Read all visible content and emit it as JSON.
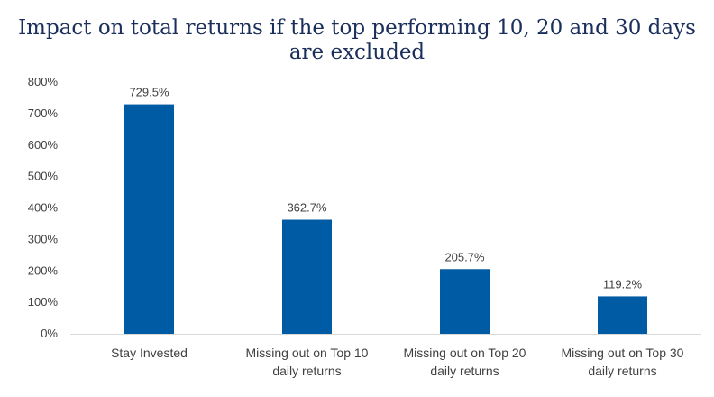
{
  "chart_data": {
    "type": "bar",
    "title_lines": [
      "Impact on total returns if the top performing  10, 20 and 30 days",
      "are excluded"
    ],
    "categories": [
      [
        "Stay Invested"
      ],
      [
        "Missing out on Top 10",
        "daily returns"
      ],
      [
        "Missing out on Top 20",
        "daily returns"
      ],
      [
        "Missing out on Top 30",
        "daily returns"
      ]
    ],
    "values": [
      729.5,
      362.7,
      205.7,
      119.2
    ],
    "data_labels": [
      "729.5%",
      "362.7%",
      "205.7%",
      "119.2%"
    ],
    "xlabel": "",
    "ylabel": "",
    "ylim": [
      0,
      800
    ],
    "yticks": [
      0,
      100,
      200,
      300,
      400,
      500,
      600,
      700,
      800
    ],
    "ytick_labels": [
      "0%",
      "100%",
      "200%",
      "300%",
      "400%",
      "500%",
      "600%",
      "700%",
      "800%"
    ],
    "grid": false,
    "bar_color": "#005ba5",
    "axis_color": "#d9d9d9",
    "title_color": "#1b2f5b"
  }
}
